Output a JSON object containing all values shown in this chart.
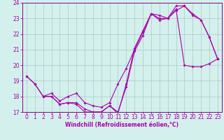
{
  "xlabel": "Windchill (Refroidissement éolien,°C)",
  "bg_color": "#d4f0ec",
  "grid_color": "#a8c8c4",
  "line_color": "#aa00aa",
  "spine_color": "#880088",
  "xlim": [
    -0.5,
    23.5
  ],
  "ylim": [
    17,
    24
  ],
  "yticks": [
    17,
    18,
    19,
    20,
    21,
    22,
    23,
    24
  ],
  "xticks": [
    0,
    1,
    2,
    3,
    4,
    5,
    6,
    7,
    8,
    9,
    10,
    11,
    12,
    13,
    14,
    15,
    16,
    17,
    18,
    19,
    20,
    21,
    22,
    23
  ],
  "curve1_x": [
    0,
    1,
    2,
    3,
    4,
    5,
    6,
    7,
    8,
    9,
    10,
    11,
    12,
    13,
    14,
    15,
    16,
    17,
    18,
    19,
    20,
    21,
    22,
    23
  ],
  "curve1_y": [
    19.3,
    18.8,
    18.0,
    18.0,
    17.5,
    17.6,
    17.6,
    17.2,
    17.0,
    17.0,
    17.4,
    16.9,
    18.8,
    21.1,
    22.2,
    23.3,
    23.0,
    23.0,
    23.8,
    23.8,
    23.3,
    22.9,
    21.8,
    20.4
  ],
  "curve2_x": [
    0,
    1,
    2,
    3,
    4,
    5,
    6,
    7,
    8,
    9,
    10,
    11,
    12,
    13,
    14,
    15,
    16,
    17,
    18,
    19,
    20,
    21,
    22,
    23
  ],
  "curve2_y": [
    19.3,
    18.8,
    18.0,
    18.2,
    17.7,
    18.0,
    18.2,
    17.6,
    17.4,
    17.3,
    17.6,
    18.8,
    19.8,
    21.0,
    22.1,
    23.3,
    23.2,
    23.0,
    23.6,
    20.0,
    19.9,
    19.9,
    20.1,
    20.4
  ],
  "curve3_x": [
    2,
    3,
    4,
    5,
    6,
    7,
    8,
    9,
    10,
    11,
    12,
    13,
    14,
    15,
    16,
    17,
    18,
    19,
    20,
    21,
    22,
    23
  ],
  "curve3_y": [
    18.0,
    18.0,
    17.5,
    17.6,
    17.5,
    17.0,
    17.0,
    17.0,
    17.4,
    17.0,
    18.6,
    20.9,
    21.9,
    23.3,
    22.9,
    23.0,
    23.5,
    23.8,
    23.2,
    22.9,
    21.8,
    20.4
  ],
  "tick_fontsize": 5.5,
  "xlabel_fontsize": 5.5,
  "marker_size": 2.0,
  "line_width": 0.8
}
